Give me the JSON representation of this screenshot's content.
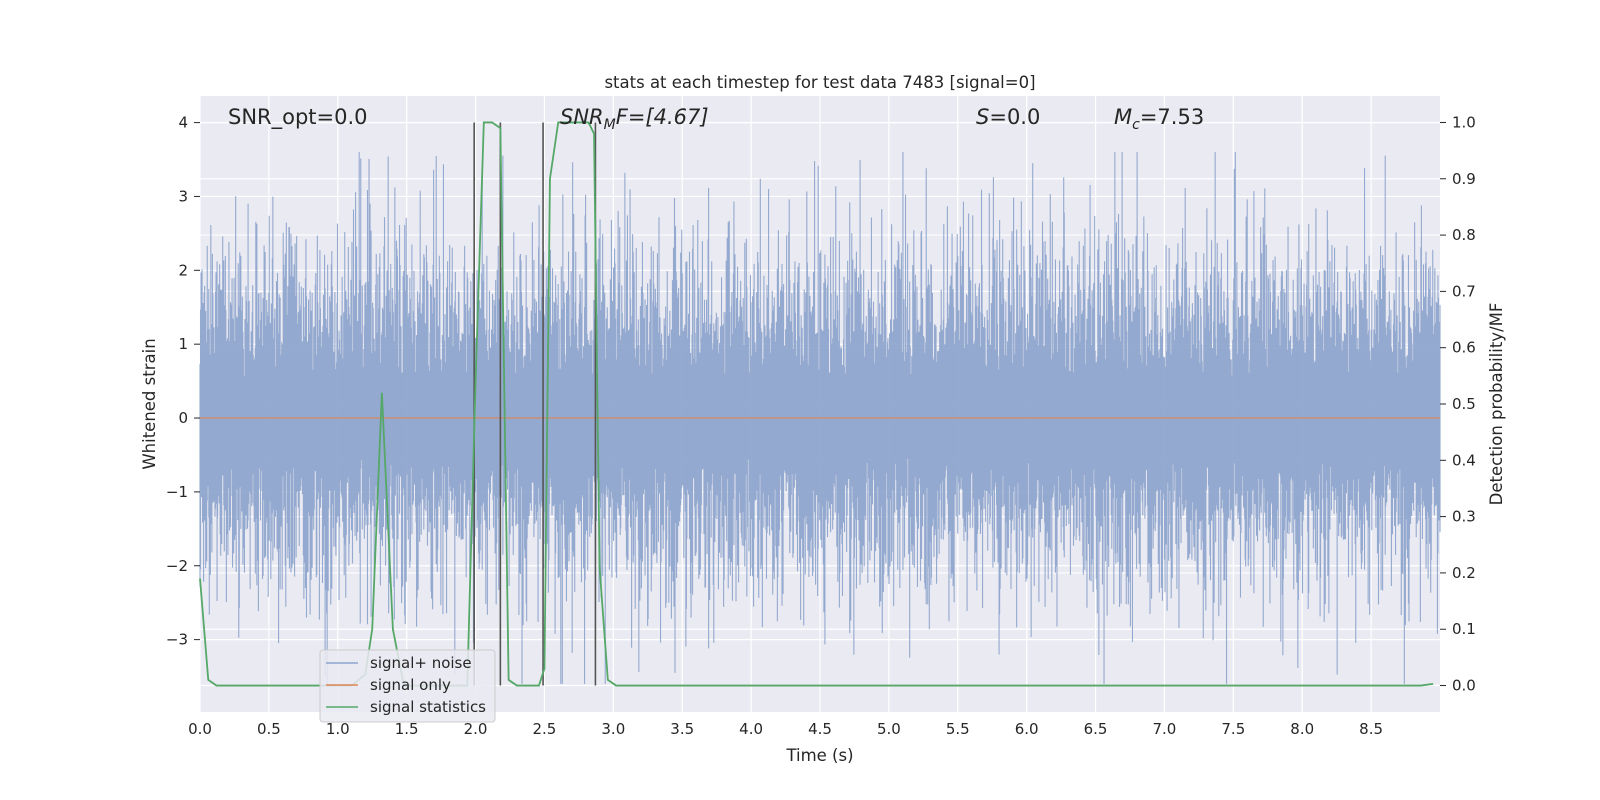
{
  "chart_data": {
    "type": "line",
    "title": "stats at each timestep for test data 7483 [signal=0]",
    "xlabel": "Time (s)",
    "ylabel": "Whitened strain",
    "y2label": "Detection probability/MF",
    "xlim": [
      0,
      9.0
    ],
    "ylim": [
      -3.98,
      4.36
    ],
    "y2lim": [
      -0.047,
      1.047
    ],
    "xticks": [
      0.0,
      0.5,
      1.0,
      1.5,
      2.0,
      2.5,
      3.0,
      3.5,
      4.0,
      4.5,
      5.0,
      5.5,
      6.0,
      6.5,
      7.0,
      7.5,
      8.0,
      8.5
    ],
    "yticks": [
      -3,
      -2,
      -1,
      0,
      1,
      2,
      3,
      4
    ],
    "y2ticks": [
      0.0,
      0.1,
      0.2,
      0.3,
      0.4,
      0.5,
      0.6,
      0.7,
      0.8,
      0.9,
      1.0
    ],
    "grid": true,
    "legend_position": "lower-left",
    "annotations": {
      "snr_opt": "SNR_opt=0.0",
      "snr_mf_main": "SNR",
      "snr_mf_sub": "M",
      "snr_mf_rest": "F=[4.67]",
      "s_main": "S",
      "s_rest": "=0.0",
      "mc_main": "M",
      "mc_sub": "c",
      "mc_rest": "=7.53"
    },
    "series": [
      {
        "name": "signal+ noise",
        "color": "#8fa5cc",
        "kind": "noise",
        "amplitude_peak_range": [
          -3.6,
          3.6
        ]
      },
      {
        "name": "signal only",
        "color": "#dd8452",
        "kind": "constant",
        "value": 0.0
      },
      {
        "name": "signal statistics",
        "color": "#55a868",
        "axis": "right",
        "x": [
          0.0,
          0.06,
          0.12,
          0.2,
          0.3,
          0.4,
          0.5,
          0.6,
          0.7,
          0.8,
          0.9,
          1.0,
          1.1,
          1.2,
          1.25,
          1.32,
          1.4,
          1.48,
          1.56,
          1.64,
          1.72,
          1.8,
          1.88,
          1.94,
          2.0,
          2.06,
          2.12,
          2.18,
          2.24,
          2.3,
          2.36,
          2.42,
          2.46,
          2.5,
          2.54,
          2.6,
          2.66,
          2.72,
          2.78,
          2.82,
          2.86,
          2.9,
          2.96,
          3.02,
          3.2,
          3.6,
          4.0,
          4.5,
          5.0,
          5.5,
          6.0,
          6.5,
          7.0,
          7.5,
          8.0,
          8.5,
          8.86,
          8.95
        ],
        "values": [
          0.19,
          0.01,
          0.0,
          0.0,
          0.0,
          0.0,
          0.0,
          0.0,
          0.0,
          0.0,
          0.0,
          0.0,
          0.0,
          0.02,
          0.1,
          0.52,
          0.1,
          0.0,
          0.0,
          0.0,
          0.0,
          0.0,
          0.0,
          0.0,
          0.54,
          1.0,
          1.0,
          0.99,
          0.01,
          0.0,
          0.0,
          0.0,
          0.0,
          0.03,
          0.9,
          1.0,
          1.0,
          1.0,
          1.0,
          1.0,
          0.98,
          0.21,
          0.01,
          0.0,
          0.0,
          0.0,
          0.0,
          0.0,
          0.0,
          0.0,
          0.0,
          0.0,
          0.0,
          0.0,
          0.0,
          0.0,
          0.0,
          0.003
        ]
      }
    ],
    "vlines": {
      "color": "#555555",
      "x": [
        1.99,
        2.18,
        2.49,
        2.87
      ],
      "ymin": 0.0,
      "ymax": 1.0,
      "axis": "right"
    }
  }
}
